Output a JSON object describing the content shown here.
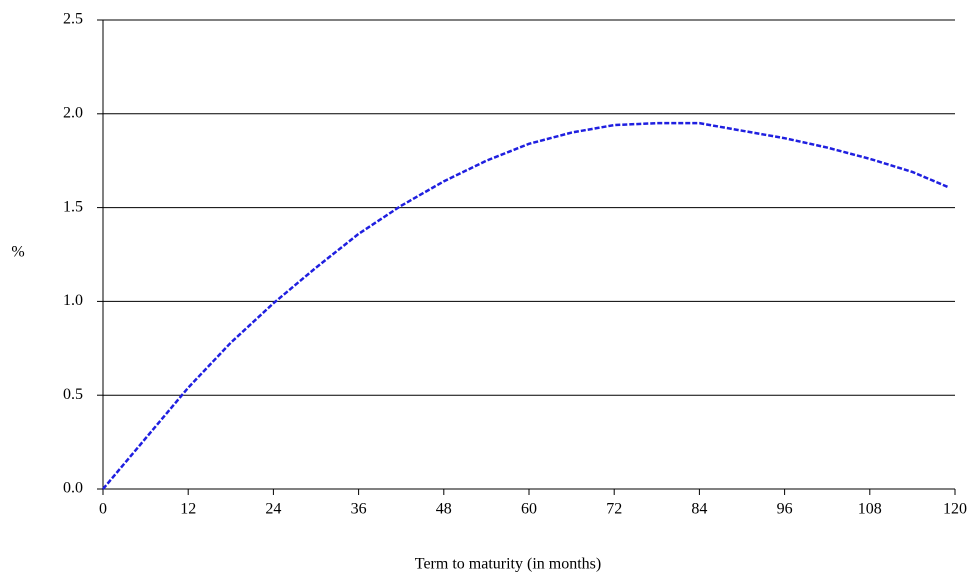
{
  "chart_data": {
    "type": "line",
    "xlabel": "Term to maturity (in months)",
    "ylabel": "%",
    "x": [
      0,
      6,
      12,
      18,
      24,
      30,
      36,
      42,
      48,
      54,
      60,
      66,
      72,
      78,
      84,
      90,
      96,
      102,
      108,
      114,
      119
    ],
    "series": [
      {
        "color": "#1f1fe0",
        "values": [
          0,
          0.27,
          0.54,
          0.78,
          0.99,
          1.18,
          1.36,
          1.51,
          1.64,
          1.75,
          1.84,
          1.9,
          1.94,
          1.95,
          1.95,
          1.91,
          1.87,
          1.82,
          1.76,
          1.69,
          1.61
        ]
      }
    ],
    "xlim": [
      0,
      120
    ],
    "xticks": [
      0,
      12,
      24,
      36,
      48,
      60,
      72,
      84,
      96,
      108,
      120
    ],
    "ylim": [
      0,
      2.5
    ],
    "yticks": [
      {
        "value": 0,
        "label": "0.0"
      },
      {
        "value": 0.5,
        "label": "0.5"
      },
      {
        "value": 1,
        "label": "1.0"
      },
      {
        "value": 1.5,
        "label": "1.5"
      },
      {
        "value": 2,
        "label": "2.0"
      },
      {
        "value": 2.5,
        "label": "2.5"
      }
    ],
    "grid": true
  }
}
